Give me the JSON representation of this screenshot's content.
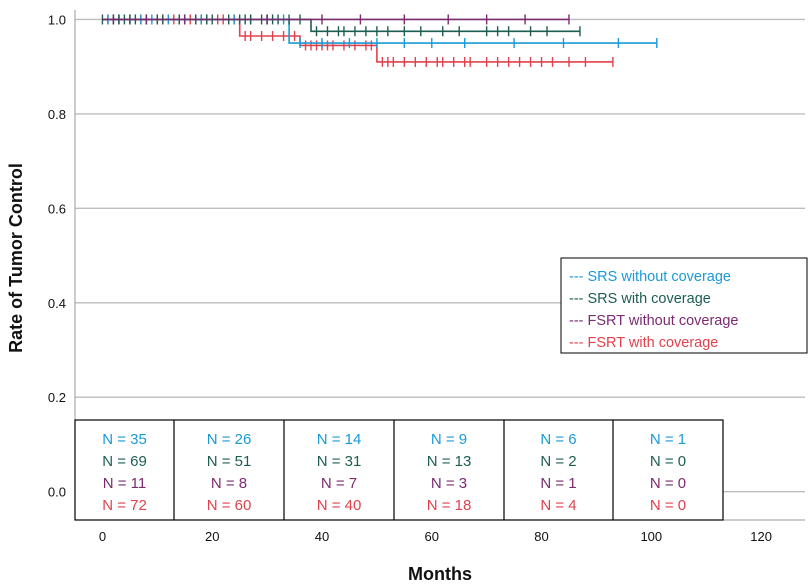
{
  "chart_data": {
    "type": "line",
    "subtype": "kaplan-meier",
    "title": "",
    "xlabel": "Months",
    "ylabel": "Rate of Tumor Control",
    "xlim": [
      -5,
      128
    ],
    "ylim": [
      -0.06,
      1.02
    ],
    "x_ticks": [
      0,
      20,
      40,
      60,
      80,
      100,
      120
    ],
    "y_ticks": [
      0.0,
      0.2,
      0.4,
      0.6,
      0.8,
      1.0
    ],
    "x_tick_labels": [
      "0",
      "20",
      "40",
      "60",
      "80",
      "100",
      "120"
    ],
    "y_tick_labels": [
      "0.0",
      "0.2",
      "0.4",
      "0.6",
      "0.8",
      "1.0"
    ],
    "grid": true,
    "legend_position": "center-right",
    "series": [
      {
        "name": "SRS without coverage",
        "legend_label": "--- SRS without coverage",
        "color": "#1a9ad6",
        "steps": [
          [
            0,
            1.0
          ],
          [
            34,
            1.0
          ],
          [
            34,
            0.95
          ],
          [
            101,
            0.95
          ]
        ],
        "censor_x": [
          1,
          3,
          5,
          7,
          9,
          12,
          15,
          18,
          24,
          27,
          30,
          33,
          36,
          40,
          45,
          50,
          55,
          60,
          66,
          75,
          84,
          94,
          101
        ]
      },
      {
        "name": "SRS with coverage",
        "legend_label": "--- SRS with coverage",
        "color": "#1d5e52",
        "steps": [
          [
            0,
            1.0
          ],
          [
            38,
            1.0
          ],
          [
            38,
            0.975
          ],
          [
            87,
            0.975
          ]
        ],
        "censor_x": [
          0,
          2,
          3,
          4,
          5,
          6,
          8,
          10,
          11,
          14,
          17,
          19,
          20,
          23,
          25,
          26,
          27,
          29,
          30,
          31,
          32,
          34,
          36,
          39,
          41,
          43,
          44,
          46,
          48,
          50,
          52,
          55,
          58,
          62,
          65,
          70,
          72,
          74,
          78,
          81,
          87
        ]
      },
      {
        "name": "FSRT without coverage",
        "legend_label": "--- FSRT without coverage",
        "color": "#7b2b6f",
        "steps": [
          [
            0,
            1.0
          ],
          [
            85,
            1.0
          ]
        ],
        "censor_x": [
          2,
          8,
          15,
          30,
          40,
          47,
          55,
          63,
          70,
          77,
          85
        ]
      },
      {
        "name": "FSRT with coverage",
        "legend_label": "--- FSRT with coverage",
        "color": "#e0424e",
        "steps": [
          [
            0,
            1.0
          ],
          [
            25,
            1.0
          ],
          [
            25,
            0.965
          ],
          [
            36,
            0.965
          ],
          [
            36,
            0.945
          ],
          [
            50,
            0.945
          ],
          [
            50,
            0.91
          ],
          [
            93,
            0.91
          ]
        ],
        "censor_x": [
          1,
          3,
          5,
          7,
          8,
          10,
          11,
          13,
          14,
          15,
          16,
          17,
          18,
          19,
          21,
          22,
          24,
          26,
          27,
          29,
          31,
          33,
          35,
          37,
          38,
          39,
          40,
          41,
          42,
          44,
          46,
          48,
          49,
          51,
          52,
          53,
          55,
          57,
          59,
          61,
          62,
          64,
          66,
          67,
          70,
          72,
          74,
          76,
          78,
          80,
          82,
          85,
          88,
          93
        ]
      }
    ],
    "risk_table": {
      "columns": [
        {
          "at_x": 0,
          "counts": [
            "N = 35",
            "N = 69",
            "N = 11",
            "N = 72"
          ]
        },
        {
          "at_x": 20,
          "counts": [
            "N = 26",
            "N = 51",
            "N = 8",
            "N = 60"
          ]
        },
        {
          "at_x": 40,
          "counts": [
            "N = 14",
            "N = 31",
            "N = 7",
            "N = 40"
          ]
        },
        {
          "at_x": 60,
          "counts": [
            "N = 9",
            "N = 13",
            "N = 3",
            "N = 18"
          ]
        },
        {
          "at_x": 80,
          "counts": [
            "N = 6",
            "N = 2",
            "N = 1",
            "N = 4"
          ]
        },
        {
          "at_x": 100,
          "counts": [
            "N = 1",
            "N = 0",
            "N = 0",
            "N = 0"
          ]
        }
      ]
    }
  }
}
